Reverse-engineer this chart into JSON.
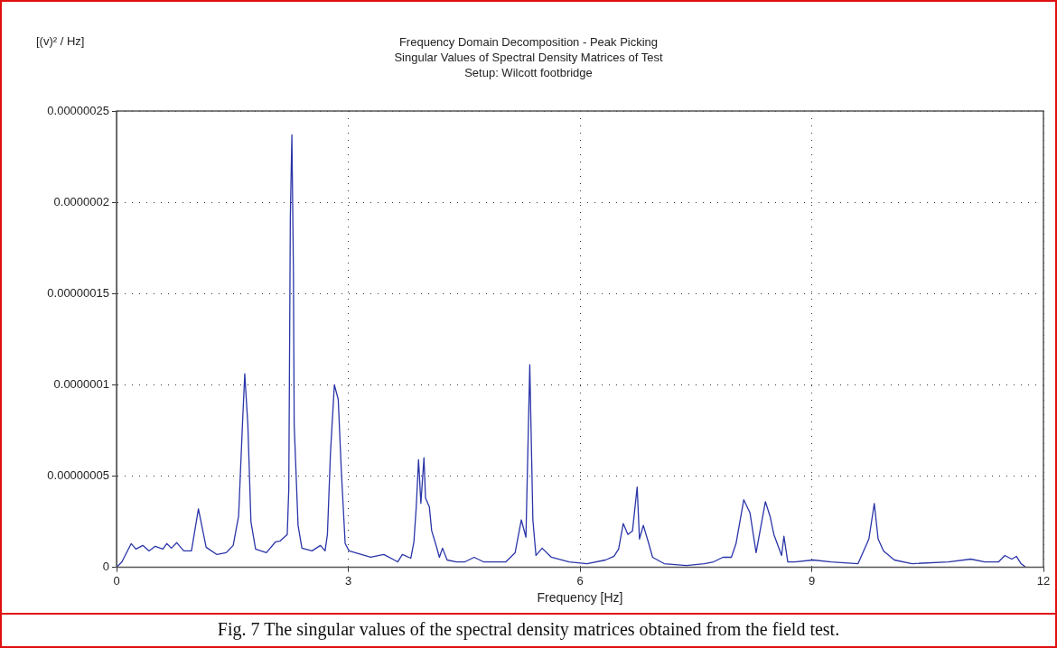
{
  "chart_data": {
    "type": "line",
    "title": "Frequency Domain Decomposition - Peak Picking",
    "subtitle": "Singular Values of Spectral Density Matrices of Test Setup: Wilcott footbridge",
    "xlabel": "Frequency [Hz]",
    "ylabel": "[(v)² / Hz]",
    "annotations": [
      "Fig. 7 The singular values of the spectral density matrices obtained from the field test."
    ],
    "color": "#2a35a8",
    "line_style": "solid",
    "marker": "none",
    "grid": true,
    "legend": false,
    "xlim": [
      0,
      12
    ],
    "xticks": [
      0,
      3,
      6,
      9,
      12
    ],
    "ylim": [
      0,
      2.5e-07
    ],
    "yticks": [
      0,
      {
        "value": 5e-08,
        "label": "0.00000005"
      },
      {
        "value": 1e-07,
        "label": "0.0000001"
      },
      {
        "value": 1.5e-07,
        "label": "0.00000015"
      },
      {
        "value": 2e-07,
        "label": "0.0000002"
      },
      {
        "value": 2.5e-07,
        "label": "0.00000025"
      }
    ],
    "x": [
      0,
      0.07,
      0.19,
      0.25,
      0.34,
      0.42,
      0.5,
      0.6,
      0.65,
      0.71,
      0.78,
      0.87,
      0.97,
      1.06,
      1.16,
      1.3,
      1.42,
      1.51,
      1.58,
      1.63,
      1.66,
      1.7,
      1.74,
      1.8,
      1.94,
      2.06,
      2.12,
      2.21,
      2.23,
      2.25,
      2.27,
      2.29,
      2.3,
      2.35,
      2.4,
      2.53,
      2.64,
      2.7,
      2.73,
      2.77,
      2.82,
      2.87,
      2.91,
      2.96,
      3.01,
      3.17,
      3.29,
      3.46,
      3.64,
      3.7,
      3.81,
      3.85,
      3.88,
      3.91,
      3.94,
      3.98,
      4,
      4.05,
      4.08,
      4.13,
      4.18,
      4.22,
      4.28,
      4.4,
      4.51,
      4.63,
      4.75,
      5.04,
      5.16,
      5.24,
      5.3,
      5.35,
      5.39,
      5.43,
      5.51,
      5.63,
      5.86,
      6.09,
      6.33,
      6.44,
      6.5,
      6.56,
      6.62,
      6.68,
      6.74,
      6.77,
      6.82,
      6.89,
      6.94,
      7.09,
      7.38,
      7.61,
      7.73,
      7.85,
      7.96,
      8.02,
      8.12,
      8.2,
      8.28,
      8.4,
      8.46,
      8.51,
      8.61,
      8.64,
      8.69,
      8.78,
      9.02,
      9.25,
      9.6,
      9.74,
      9.81,
      9.86,
      9.93,
      10.07,
      10.3,
      10.77,
      11.06,
      11.24,
      11.42,
      11.5,
      11.59,
      11.65,
      11.71,
      11.77
    ],
    "values": [
      0,
      3e-09,
      1.3e-08,
      1e-08,
      1.2e-08,
      9e-09,
      1.15e-08,
      1e-08,
      1.3e-08,
      1.05e-08,
      1.35e-08,
      9e-09,
      9e-09,
      3.2e-08,
      1.1e-08,
      7e-09,
      8e-09,
      1.2e-08,
      2.8e-08,
      7.8e-08,
      1.06e-07,
      7.8e-08,
      2.5e-08,
      1e-08,
      8e-09,
      1.4e-08,
      1.45e-08,
      1.8e-08,
      4.3e-08,
      1.92e-07,
      2.37e-07,
      1.62e-07,
      7.8e-08,
      2.3e-08,
      1.05e-08,
      9e-09,
      1.2e-08,
      9e-09,
      1.8e-08,
      6.3e-08,
      1e-07,
      9.2e-08,
      5.3e-08,
      1.3e-08,
      9e-09,
      7e-09,
      5.5e-09,
      7e-09,
      3e-09,
      7e-09,
      5e-09,
      1.4e-08,
      3.3e-08,
      5.9e-08,
      3.5e-08,
      6e-08,
      3.8e-08,
      3.3e-08,
      2e-08,
      1.3e-08,
      5.5e-09,
      1.05e-08,
      4e-09,
      3e-09,
      3e-09,
      5.5e-09,
      3e-09,
      3e-09,
      8e-09,
      2.6e-08,
      1.65e-08,
      1.11e-07,
      2.6e-08,
      6.5e-09,
      1.05e-08,
      5.5e-09,
      3e-09,
      2e-09,
      4e-09,
      6e-09,
      1e-08,
      2.4e-08,
      1.8e-08,
      2e-08,
      4.4e-08,
      1.55e-08,
      2.3e-08,
      1.3e-08,
      5.5e-09,
      2e-09,
      1e-09,
      2e-09,
      3e-09,
      5.5e-09,
      5.5e-09,
      1.3e-08,
      3.7e-08,
      3e-08,
      8e-09,
      3.6e-08,
      2.8e-08,
      1.8e-08,
      6.5e-09,
      1.7e-08,
      3e-09,
      3e-09,
      4e-09,
      3e-09,
      2e-09,
      1.55e-08,
      3.5e-08,
      1.55e-08,
      9e-09,
      4e-09,
      2e-09,
      3e-09,
      4.5e-09,
      3e-09,
      3e-09,
      6.5e-09,
      4.5e-09,
      6e-09,
      2e-09,
      0
    ]
  }
}
